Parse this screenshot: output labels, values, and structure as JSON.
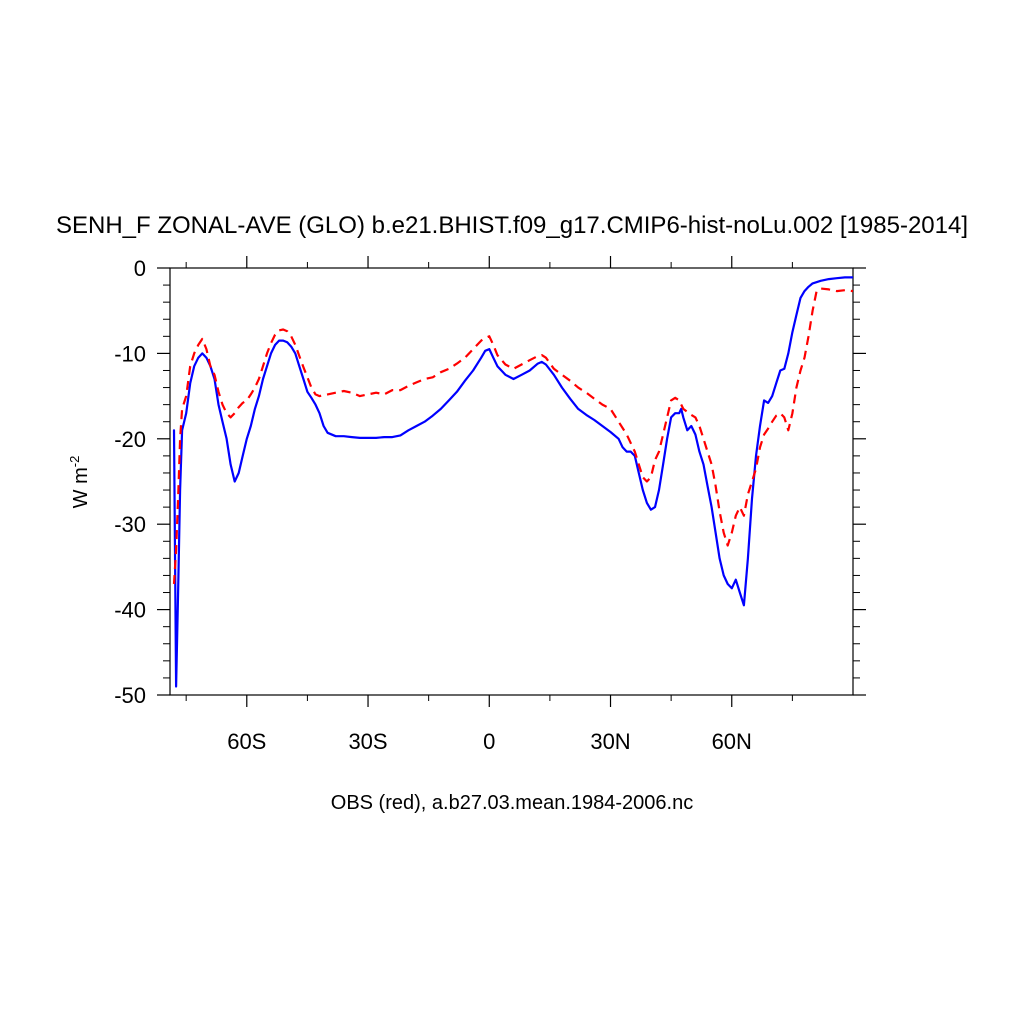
{
  "chart_data": {
    "type": "line",
    "title": "SENH_F ZONAL-AVE (GLO) b.e21.BHIST.f09_g17.CMIP6-hist-noLu.002 [1985-2014]",
    "xlabel": "OBS (red), a.b27.03.mean.1984-2006.nc",
    "ylabel_base": "W m",
    "ylabel_exponent": "-2",
    "xlim": [
      -79,
      90
    ],
    "ylim": [
      -50,
      0
    ],
    "x_ticks": [
      {
        "value": -60,
        "label": "60S"
      },
      {
        "value": -30,
        "label": "30S"
      },
      {
        "value": 0,
        "label": "0"
      },
      {
        "value": 30,
        "label": "30N"
      },
      {
        "value": 60,
        "label": "60N"
      }
    ],
    "y_ticks": [
      {
        "value": 0,
        "label": "0"
      },
      {
        "value": -10,
        "label": "-10"
      },
      {
        "value": -20,
        "label": "-20"
      },
      {
        "value": -30,
        "label": "-30"
      },
      {
        "value": -40,
        "label": "-40"
      },
      {
        "value": -50,
        "label": "-50"
      }
    ],
    "grid": false,
    "series": [
      {
        "color": "#0000ff",
        "style": "solid",
        "points": [
          [
            -78,
            -19
          ],
          [
            -77.5,
            -49
          ],
          [
            -77,
            -38
          ],
          [
            -76.5,
            -26
          ],
          [
            -76,
            -19
          ],
          [
            -75,
            -17
          ],
          [
            -74,
            -13.5
          ],
          [
            -73,
            -11.5
          ],
          [
            -72,
            -10.5
          ],
          [
            -71,
            -10
          ],
          [
            -70,
            -10.5
          ],
          [
            -69,
            -11.5
          ],
          [
            -68,
            -13
          ],
          [
            -67,
            -16
          ],
          [
            -66,
            -18
          ],
          [
            -65,
            -20
          ],
          [
            -64,
            -23
          ],
          [
            -63,
            -25
          ],
          [
            -62,
            -24
          ],
          [
            -61,
            -22
          ],
          [
            -60,
            -20
          ],
          [
            -59,
            -18.5
          ],
          [
            -58,
            -16.5
          ],
          [
            -57,
            -15
          ],
          [
            -56,
            -13
          ],
          [
            -55,
            -11.5
          ],
          [
            -54,
            -10
          ],
          [
            -53,
            -9
          ],
          [
            -52,
            -8.5
          ],
          [
            -51,
            -8.5
          ],
          [
            -50,
            -8.7
          ],
          [
            -49,
            -9.2
          ],
          [
            -48,
            -10
          ],
          [
            -47,
            -11.5
          ],
          [
            -46,
            -13
          ],
          [
            -45,
            -14.5
          ],
          [
            -44,
            -15.2
          ],
          [
            -43,
            -16
          ],
          [
            -42,
            -17
          ],
          [
            -41,
            -18.5
          ],
          [
            -40,
            -19.3
          ],
          [
            -38,
            -19.7
          ],
          [
            -36,
            -19.7
          ],
          [
            -34,
            -19.8
          ],
          [
            -32,
            -19.9
          ],
          [
            -30,
            -19.9
          ],
          [
            -28,
            -19.9
          ],
          [
            -26,
            -19.8
          ],
          [
            -24,
            -19.8
          ],
          [
            -22,
            -19.6
          ],
          [
            -20,
            -19
          ],
          [
            -18,
            -18.5
          ],
          [
            -16,
            -18
          ],
          [
            -14,
            -17.3
          ],
          [
            -12,
            -16.5
          ],
          [
            -10,
            -15.5
          ],
          [
            -8,
            -14.5
          ],
          [
            -6,
            -13.2
          ],
          [
            -4,
            -12
          ],
          [
            -2,
            -10.5
          ],
          [
            -1,
            -9.7
          ],
          [
            0,
            -9.5
          ],
          [
            1,
            -10.5
          ],
          [
            2,
            -11.5
          ],
          [
            4,
            -12.5
          ],
          [
            6,
            -13
          ],
          [
            8,
            -12.5
          ],
          [
            10,
            -12
          ],
          [
            12,
            -11.2
          ],
          [
            13,
            -11
          ],
          [
            14,
            -11.3
          ],
          [
            16,
            -12.5
          ],
          [
            18,
            -14
          ],
          [
            20,
            -15.3
          ],
          [
            22,
            -16.5
          ],
          [
            24,
            -17.2
          ],
          [
            26,
            -17.8
          ],
          [
            28,
            -18.5
          ],
          [
            30,
            -19.2
          ],
          [
            32,
            -20
          ],
          [
            33,
            -21
          ],
          [
            34,
            -21.5
          ],
          [
            35,
            -21.5
          ],
          [
            36,
            -22
          ],
          [
            37,
            -24
          ],
          [
            38,
            -26
          ],
          [
            39,
            -27.5
          ],
          [
            40,
            -28.3
          ],
          [
            41,
            -28
          ],
          [
            42,
            -26
          ],
          [
            43,
            -23
          ],
          [
            44,
            -20
          ],
          [
            45,
            -17.5
          ],
          [
            46,
            -17
          ],
          [
            47,
            -17
          ],
          [
            47.5,
            -16.5
          ],
          [
            48,
            -17.5
          ],
          [
            49,
            -19
          ],
          [
            50,
            -18.5
          ],
          [
            51,
            -19.5
          ],
          [
            52,
            -21.5
          ],
          [
            53,
            -23
          ],
          [
            54,
            -25.5
          ],
          [
            55,
            -28
          ],
          [
            56,
            -31
          ],
          [
            57,
            -34
          ],
          [
            58,
            -36
          ],
          [
            59,
            -37
          ],
          [
            60,
            -37.5
          ],
          [
            61,
            -36.5
          ],
          [
            62,
            -38
          ],
          [
            63,
            -39.5
          ],
          [
            64,
            -34
          ],
          [
            65,
            -27
          ],
          [
            66,
            -22
          ],
          [
            67,
            -18.5
          ],
          [
            68,
            -15.5
          ],
          [
            69,
            -15.8
          ],
          [
            70,
            -15
          ],
          [
            71,
            -13.5
          ],
          [
            72,
            -12
          ],
          [
            73,
            -11.8
          ],
          [
            74,
            -10
          ],
          [
            75,
            -7.5
          ],
          [
            76,
            -5.5
          ],
          [
            77,
            -3.5
          ],
          [
            78,
            -2.7
          ],
          [
            79,
            -2.2
          ],
          [
            80,
            -1.8
          ],
          [
            82,
            -1.5
          ],
          [
            84,
            -1.3
          ],
          [
            86,
            -1.2
          ],
          [
            88,
            -1.1
          ],
          [
            90,
            -1.1
          ]
        ]
      },
      {
        "color": "#ff0000",
        "style": "dashed",
        "points": [
          [
            -78,
            -37
          ],
          [
            -77.5,
            -33
          ],
          [
            -77,
            -27
          ],
          [
            -76.5,
            -20
          ],
          [
            -76,
            -16.5
          ],
          [
            -75,
            -15
          ],
          [
            -74,
            -11.5
          ],
          [
            -73,
            -10
          ],
          [
            -72,
            -9
          ],
          [
            -71,
            -8.3
          ],
          [
            -70,
            -9.5
          ],
          [
            -69,
            -11.5
          ],
          [
            -68,
            -12.5
          ],
          [
            -67,
            -14.5
          ],
          [
            -66,
            -16
          ],
          [
            -65,
            -17
          ],
          [
            -64,
            -17.5
          ],
          [
            -63,
            -17
          ],
          [
            -62,
            -16.3
          ],
          [
            -61,
            -15.8
          ],
          [
            -60,
            -15.5
          ],
          [
            -59,
            -14.8
          ],
          [
            -58,
            -14
          ],
          [
            -57,
            -13
          ],
          [
            -56,
            -11.5
          ],
          [
            -55,
            -10
          ],
          [
            -54,
            -8.8
          ],
          [
            -53,
            -7.8
          ],
          [
            -52,
            -7.3
          ],
          [
            -51,
            -7.2
          ],
          [
            -50,
            -7.4
          ],
          [
            -49,
            -8
          ],
          [
            -48,
            -9
          ],
          [
            -47,
            -10.3
          ],
          [
            -46,
            -11.6
          ],
          [
            -45,
            -12.8
          ],
          [
            -44,
            -14
          ],
          [
            -43,
            -14.8
          ],
          [
            -42,
            -15
          ],
          [
            -40,
            -14.8
          ],
          [
            -38,
            -14.6
          ],
          [
            -36,
            -14.4
          ],
          [
            -34,
            -14.6
          ],
          [
            -32,
            -15
          ],
          [
            -30,
            -14.8
          ],
          [
            -28,
            -14.6
          ],
          [
            -26,
            -14.8
          ],
          [
            -24,
            -14.3
          ],
          [
            -22,
            -14.3
          ],
          [
            -20,
            -13.8
          ],
          [
            -18,
            -13.4
          ],
          [
            -16,
            -13
          ],
          [
            -14,
            -12.8
          ],
          [
            -12,
            -12.2
          ],
          [
            -10,
            -11.8
          ],
          [
            -8,
            -11.2
          ],
          [
            -6,
            -10.5
          ],
          [
            -4,
            -9.5
          ],
          [
            -2,
            -8.5
          ],
          [
            -1,
            -8.2
          ],
          [
            0,
            -8
          ],
          [
            1,
            -9
          ],
          [
            2,
            -10.2
          ],
          [
            4,
            -11.3
          ],
          [
            6,
            -11.8
          ],
          [
            8,
            -11.3
          ],
          [
            10,
            -10.8
          ],
          [
            12,
            -10.3
          ],
          [
            13,
            -10.2
          ],
          [
            14,
            -10.5
          ],
          [
            16,
            -11.8
          ],
          [
            18,
            -12.5
          ],
          [
            20,
            -13.2
          ],
          [
            22,
            -14
          ],
          [
            24,
            -14.6
          ],
          [
            26,
            -15.3
          ],
          [
            28,
            -16
          ],
          [
            30,
            -16.5
          ],
          [
            32,
            -18
          ],
          [
            34,
            -19.5
          ],
          [
            36,
            -21.5
          ],
          [
            37,
            -23
          ],
          [
            38,
            -24.5
          ],
          [
            39,
            -25
          ],
          [
            40,
            -24.5
          ],
          [
            41,
            -22.5
          ],
          [
            42,
            -21.5
          ],
          [
            43,
            -19.5
          ],
          [
            44,
            -17.5
          ],
          [
            45,
            -15.5
          ],
          [
            46,
            -15.2
          ],
          [
            47,
            -15.5
          ],
          [
            48,
            -16.5
          ],
          [
            50,
            -17.2
          ],
          [
            51,
            -17.5
          ],
          [
            52,
            -18.5
          ],
          [
            53,
            -20
          ],
          [
            54,
            -21.5
          ],
          [
            55,
            -23
          ],
          [
            56,
            -25.5
          ],
          [
            57,
            -28.5
          ],
          [
            58,
            -31
          ],
          [
            59,
            -32.5
          ],
          [
            60,
            -31
          ],
          [
            61,
            -29
          ],
          [
            62,
            -28
          ],
          [
            63,
            -29
          ],
          [
            64,
            -26.5
          ],
          [
            65,
            -25
          ],
          [
            66,
            -23.5
          ],
          [
            67,
            -21
          ],
          [
            68,
            -19.5
          ],
          [
            69,
            -18.8
          ],
          [
            70,
            -18
          ],
          [
            71,
            -17.3
          ],
          [
            72,
            -17
          ],
          [
            73,
            -17.5
          ],
          [
            74,
            -19
          ],
          [
            75,
            -17
          ],
          [
            76,
            -14
          ],
          [
            77,
            -12
          ],
          [
            78,
            -10.5
          ],
          [
            79,
            -8
          ],
          [
            80,
            -5
          ],
          [
            81,
            -2.7
          ],
          [
            82,
            -2.4
          ],
          [
            84,
            -2.5
          ],
          [
            86,
            -2.7
          ],
          [
            88,
            -2.6
          ],
          [
            90,
            -2.7
          ]
        ]
      }
    ]
  }
}
